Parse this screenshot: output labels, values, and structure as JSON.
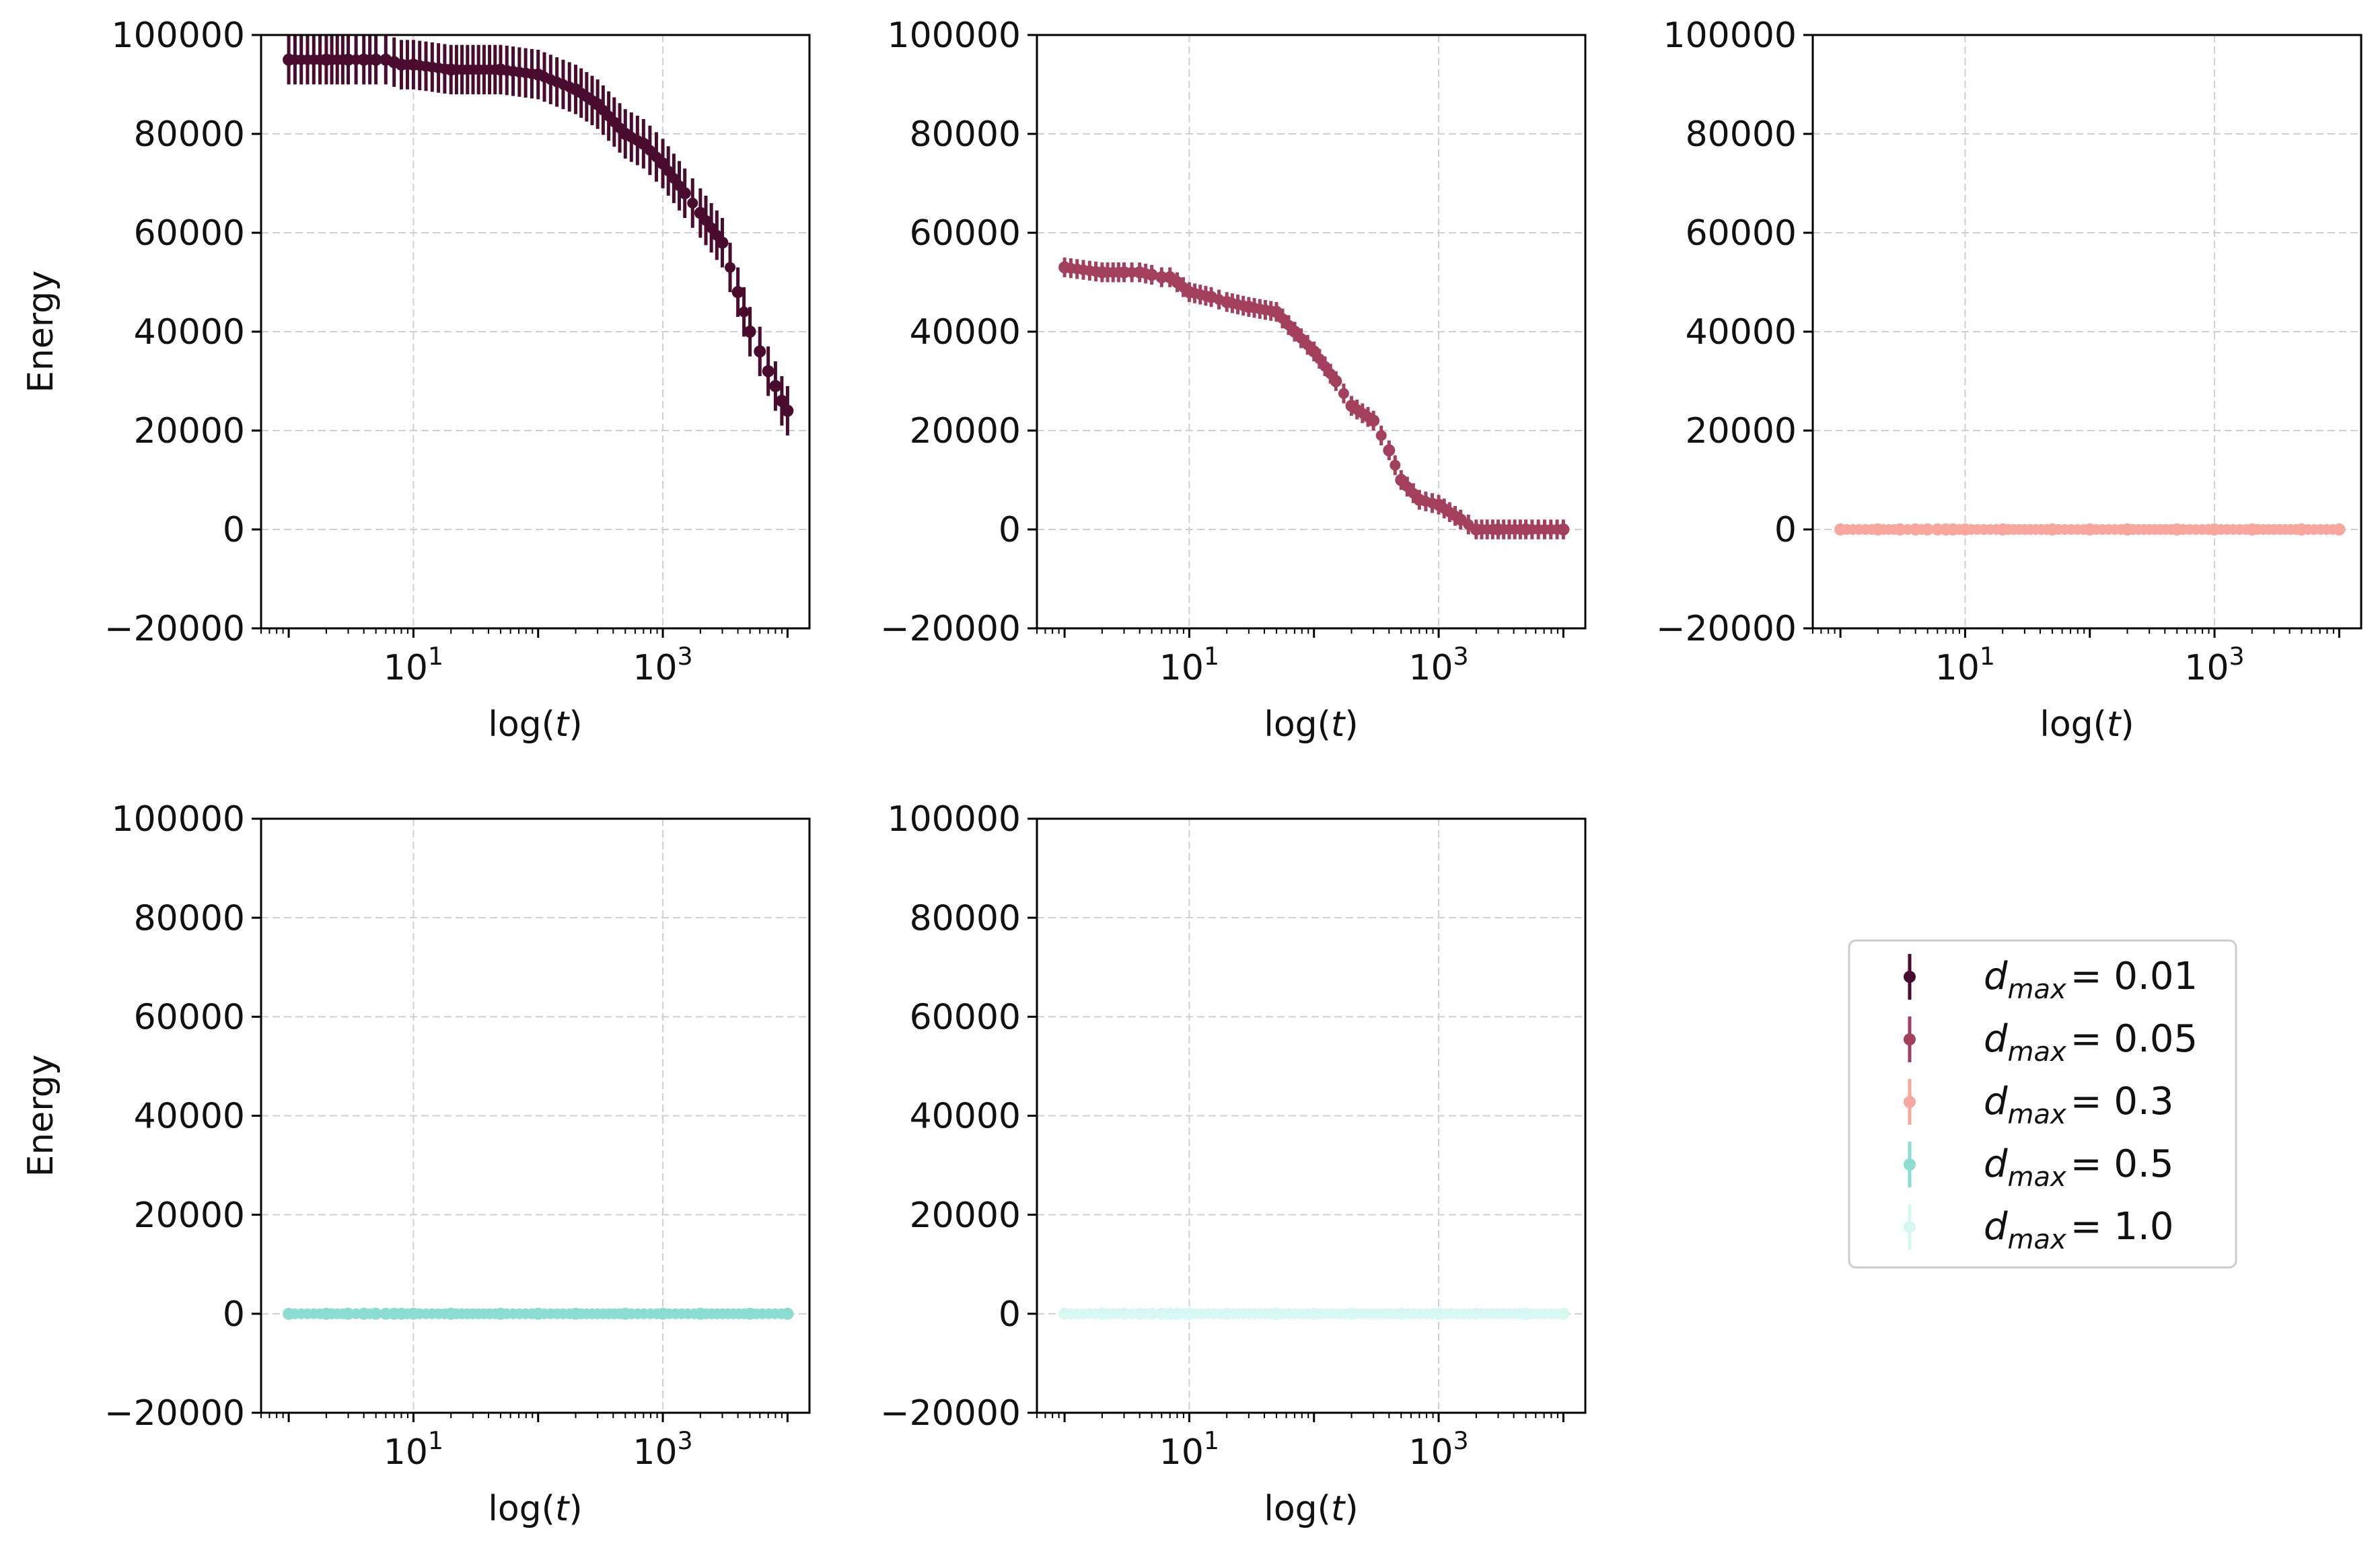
{
  "figure": {
    "y_axis_label": "Energy",
    "x_axis_label": "log(t)",
    "ytick_labels": [
      "−20000",
      "0",
      "20000",
      "40000",
      "60000",
      "80000",
      "100000"
    ],
    "xtick_labels": [
      {
        "base": "10",
        "exp": "1"
      },
      {
        "base": "10",
        "exp": "3"
      }
    ],
    "legend": [
      {
        "var": "d",
        "sub": "max",
        "rest": "= 0.01",
        "color": "#4a0c2e"
      },
      {
        "var": "d",
        "sub": "max",
        "rest": "= 0.05",
        "color": "#a3405d"
      },
      {
        "var": "d",
        "sub": "max",
        "rest": "= 0.3",
        "color": "#f7a79e"
      },
      {
        "var": "d",
        "sub": "max",
        "rest": "= 0.5",
        "color": "#8cdcd2"
      },
      {
        "var": "d",
        "sub": "max",
        "rest": "= 1.0",
        "color": "#d6f8f0"
      }
    ]
  },
  "chart_data": [
    {
      "type": "scatter",
      "series_label": "d_max = 0.01",
      "color": "#4a0c2e",
      "xscale": "log",
      "xlim": [
        0.6,
        15000
      ],
      "ylim": [
        -20000,
        100000
      ],
      "grid": true,
      "x": [
        1,
        2,
        3,
        4,
        5,
        6,
        7,
        8,
        10,
        20,
        50,
        100,
        200,
        300,
        500,
        700,
        1000,
        1500,
        2000,
        3000,
        4000,
        5000,
        6000,
        7000,
        8000,
        9000,
        10000
      ],
      "y": [
        95000,
        95000,
        95000,
        95000,
        95000,
        95000,
        94500,
        94000,
        94000,
        93000,
        93000,
        92000,
        89000,
        86000,
        80000,
        78000,
        74000,
        68000,
        64000,
        58000,
        48000,
        40000,
        36000,
        32000,
        29000,
        26000,
        24000
      ],
      "yerr": [
        5000,
        5000,
        5000,
        5000,
        5000,
        5000,
        5000,
        5000,
        5000,
        5000,
        5000,
        5000,
        5000,
        5000,
        5000,
        5000,
        5000,
        5000,
        5000,
        5000,
        5000,
        5000,
        5000,
        5000,
        5000,
        5000,
        5000
      ]
    },
    {
      "type": "scatter",
      "series_label": "d_max = 0.05",
      "color": "#a3405d",
      "xscale": "log",
      "xlim": [
        0.6,
        15000
      ],
      "ylim": [
        -20000,
        100000
      ],
      "grid": true,
      "x": [
        1,
        2,
        3,
        4,
        5,
        6,
        7,
        8,
        10,
        15,
        20,
        30,
        50,
        70,
        100,
        150,
        200,
        300,
        400,
        500,
        700,
        1000,
        1500,
        2000,
        3000,
        5000,
        10000
      ],
      "y": [
        53000,
        52000,
        52000,
        52000,
        51500,
        51000,
        51000,
        50000,
        48000,
        47000,
        46000,
        45000,
        44000,
        40000,
        36000,
        30000,
        25000,
        22000,
        16000,
        10000,
        6000,
        5000,
        2000,
        0,
        0,
        0,
        0
      ],
      "yerr": [
        2000,
        2000,
        2000,
        2000,
        2000,
        2000,
        2000,
        2000,
        2000,
        2000,
        2000,
        2000,
        2000,
        2000,
        2000,
        2000,
        2000,
        2000,
        2000,
        2000,
        2000,
        2000,
        2000,
        2000,
        2000,
        2000,
        2000
      ]
    },
    {
      "type": "scatter",
      "series_label": "d_max = 0.3",
      "color": "#f7a79e",
      "xscale": "log",
      "xlim": [
        0.6,
        15000
      ],
      "ylim": [
        -20000,
        100000
      ],
      "grid": true,
      "x": [
        1,
        2,
        3,
        4,
        5,
        6,
        7,
        8,
        10,
        20,
        50,
        100,
        200,
        500,
        1000,
        2000,
        5000,
        10000
      ],
      "y": [
        0,
        0,
        0,
        0,
        0,
        0,
        0,
        0,
        0,
        0,
        0,
        0,
        0,
        0,
        0,
        0,
        0,
        0
      ],
      "yerr": [
        0,
        0,
        0,
        0,
        0,
        0,
        0,
        0,
        0,
        0,
        0,
        0,
        0,
        0,
        0,
        0,
        0,
        0
      ]
    },
    {
      "type": "scatter",
      "series_label": "d_max = 0.5",
      "color": "#8cdcd2",
      "xscale": "log",
      "xlim": [
        0.6,
        15000
      ],
      "ylim": [
        -20000,
        100000
      ],
      "grid": true,
      "x": [
        1,
        2,
        3,
        4,
        5,
        6,
        7,
        8,
        10,
        20,
        50,
        100,
        200,
        500,
        1000,
        2000,
        5000,
        10000
      ],
      "y": [
        0,
        0,
        0,
        0,
        0,
        0,
        0,
        0,
        0,
        0,
        0,
        0,
        0,
        0,
        0,
        0,
        0,
        0
      ],
      "yerr": [
        0,
        0,
        0,
        0,
        0,
        0,
        0,
        0,
        0,
        0,
        0,
        0,
        0,
        0,
        0,
        0,
        0,
        0
      ]
    },
    {
      "type": "scatter",
      "series_label": "d_max = 1.0",
      "color": "#d6f8f0",
      "xscale": "log",
      "xlim": [
        0.6,
        15000
      ],
      "ylim": [
        -20000,
        100000
      ],
      "grid": true,
      "x": [
        1,
        2,
        3,
        4,
        5,
        6,
        7,
        8,
        10,
        20,
        50,
        100,
        200,
        500,
        1000,
        2000,
        5000,
        10000
      ],
      "y": [
        0,
        0,
        0,
        0,
        0,
        0,
        0,
        0,
        0,
        0,
        0,
        0,
        0,
        0,
        0,
        0,
        0,
        0
      ],
      "yerr": [
        0,
        0,
        0,
        0,
        0,
        0,
        0,
        0,
        0,
        0,
        0,
        0,
        0,
        0,
        0,
        0,
        0,
        0
      ]
    }
  ]
}
